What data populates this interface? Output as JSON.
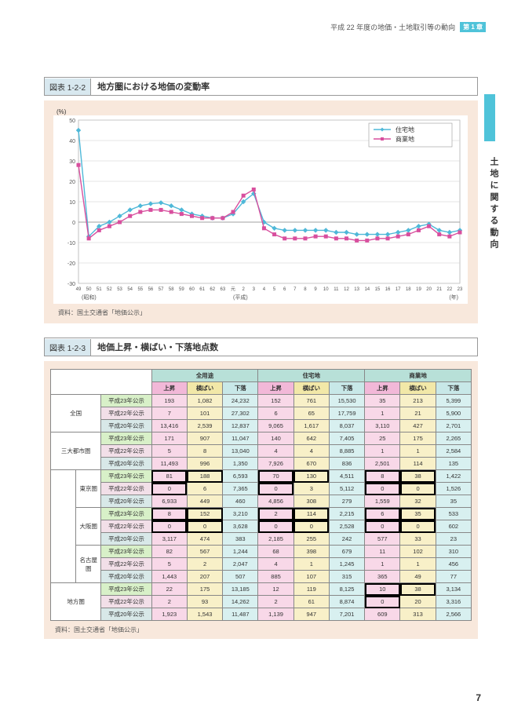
{
  "header": {
    "text": "平成 22 年度の地価・土地取引等の動向",
    "chapter": "第 1 章"
  },
  "sidebar_text": "土地に関する動向",
  "page_number": "7",
  "fig1": {
    "num": "図表 1-2-2",
    "caption": "地方圏における地価の変動率",
    "y_unit": "(%)",
    "source": "資料：国土交通省「地価公示」",
    "legend": {
      "res": "住宅地",
      "com": "商業地"
    },
    "ylim": [
      -30,
      50
    ],
    "ytick_step": 10,
    "x_labels": [
      "49",
      "50",
      "51",
      "52",
      "53",
      "54",
      "55",
      "56",
      "57",
      "58",
      "59",
      "60",
      "61",
      "62",
      "63",
      "元",
      "2",
      "3",
      "4",
      "5",
      "6",
      "7",
      "8",
      "9",
      "10",
      "11",
      "12",
      "13",
      "14",
      "15",
      "16",
      "17",
      "18",
      "19",
      "20",
      "21",
      "22",
      "23"
    ],
    "x_era_left": "(昭和)",
    "x_era_mid": "(平成)",
    "x_era_right": "(年)",
    "series": {
      "res": {
        "color": "#4fb8d8",
        "marker": "diamond",
        "values": [
          45,
          -7,
          -2,
          0,
          3,
          6,
          8,
          9,
          9.5,
          8,
          6,
          4,
          3,
          2,
          2,
          4,
          10,
          14,
          0,
          -3,
          -4,
          -4,
          -4,
          -4,
          -4,
          -5,
          -5,
          -6,
          -6,
          -6,
          -6,
          -5,
          -4,
          -2,
          -1,
          -4,
          -5,
          -4
        ]
      },
      "com": {
        "color": "#d84f9e",
        "marker": "square",
        "values": [
          28,
          -8,
          -4,
          -2,
          0,
          3,
          5,
          6,
          6,
          5,
          4,
          3,
          2,
          2,
          2,
          5,
          13,
          16,
          -3,
          -6,
          -8,
          -8,
          -8,
          -7,
          -7,
          -8,
          -8,
          -9,
          -9,
          -8,
          -8,
          -7,
          -6,
          -4,
          -2,
          -6,
          -7,
          -5
        ]
      }
    }
  },
  "fig2": {
    "num": "図表 1-2-3",
    "caption": "地価上昇・横ばい・下落地点数",
    "source": "資料：国土交通省「地価公示」",
    "groups": [
      "全用途",
      "住宅地",
      "商業地"
    ],
    "subcols": [
      "上昇",
      "横ばい",
      "下落"
    ],
    "row_groups": [
      "全国",
      "三大都市圏",
      "東京圏",
      "大阪圏",
      "名古屋圏",
      "地方圏"
    ],
    "year_labels": [
      "平成23年公示",
      "平成22年公示",
      "平成20年公示"
    ],
    "rows": [
      {
        "g": "全国",
        "y": 0,
        "v": [
          "193",
          "1,082",
          "24,232",
          "152",
          "761",
          "15,530",
          "35",
          "213",
          "5,399"
        ]
      },
      {
        "g": "全国",
        "y": 1,
        "v": [
          "7",
          "101",
          "27,302",
          "6",
          "65",
          "17,759",
          "1",
          "21",
          "5,900"
        ]
      },
      {
        "g": "全国",
        "y": 2,
        "v": [
          "13,416",
          "2,539",
          "12,837",
          "9,065",
          "1,617",
          "8,037",
          "3,110",
          "427",
          "2,701"
        ]
      },
      {
        "g": "三大都市圏",
        "y": 0,
        "v": [
          "171",
          "907",
          "11,047",
          "140",
          "642",
          "7,405",
          "25",
          "175",
          "2,265"
        ]
      },
      {
        "g": "三大都市圏",
        "y": 1,
        "v": [
          "5",
          "8",
          "13,040",
          "4",
          "4",
          "8,885",
          "1",
          "1",
          "2,584"
        ]
      },
      {
        "g": "三大都市圏",
        "y": 2,
        "v": [
          "11,493",
          "996",
          "1,350",
          "7,926",
          "670",
          "836",
          "2,501",
          "114",
          "135"
        ]
      },
      {
        "g": "東京圏",
        "y": 0,
        "v": [
          "81",
          "188",
          "6,593",
          "70",
          "130",
          "4,511",
          "8",
          "38",
          "1,422"
        ],
        "box": [
          0,
          1,
          3,
          4,
          6,
          7
        ]
      },
      {
        "g": "東京圏",
        "y": 1,
        "v": [
          "0",
          "6",
          "7,365",
          "0",
          "3",
          "5,112",
          "0",
          "0",
          "1,526"
        ],
        "box": [
          0,
          3,
          6,
          7
        ]
      },
      {
        "g": "東京圏",
        "y": 2,
        "v": [
          "6,933",
          "449",
          "460",
          "4,856",
          "308",
          "279",
          "1,559",
          "32",
          "35"
        ]
      },
      {
        "g": "大阪圏",
        "y": 0,
        "v": [
          "8",
          "152",
          "3,210",
          "2",
          "114",
          "2,215",
          "6",
          "35",
          "533"
        ],
        "box": [
          0,
          1,
          3,
          4,
          6,
          7
        ]
      },
      {
        "g": "大阪圏",
        "y": 1,
        "v": [
          "0",
          "0",
          "3,628",
          "0",
          "0",
          "2,528",
          "0",
          "0",
          "602"
        ],
        "box": [
          0,
          1,
          3,
          4,
          6,
          7
        ]
      },
      {
        "g": "大阪圏",
        "y": 2,
        "v": [
          "3,117",
          "474",
          "383",
          "2,185",
          "255",
          "242",
          "577",
          "33",
          "23"
        ]
      },
      {
        "g": "名古屋圏",
        "y": 0,
        "v": [
          "82",
          "567",
          "1,244",
          "68",
          "398",
          "679",
          "11",
          "102",
          "310"
        ]
      },
      {
        "g": "名古屋圏",
        "y": 1,
        "v": [
          "5",
          "2",
          "2,047",
          "4",
          "1",
          "1,245",
          "1",
          "1",
          "456"
        ]
      },
      {
        "g": "名古屋圏",
        "y": 2,
        "v": [
          "1,443",
          "207",
          "507",
          "885",
          "107",
          "315",
          "365",
          "49",
          "77"
        ]
      },
      {
        "g": "地方圏",
        "y": 0,
        "v": [
          "22",
          "175",
          "13,185",
          "12",
          "119",
          "8,125",
          "10",
          "38",
          "3,134"
        ],
        "box": [
          6,
          7
        ]
      },
      {
        "g": "地方圏",
        "y": 1,
        "v": [
          "2",
          "93",
          "14,262",
          "2",
          "61",
          "8,874",
          "0",
          "20",
          "3,316"
        ],
        "box": [
          6
        ]
      },
      {
        "g": "地方圏",
        "y": 2,
        "v": [
          "1,923",
          "1,543",
          "11,487",
          "1,139",
          "947",
          "7,201",
          "609",
          "313",
          "2,566"
        ]
      }
    ]
  }
}
